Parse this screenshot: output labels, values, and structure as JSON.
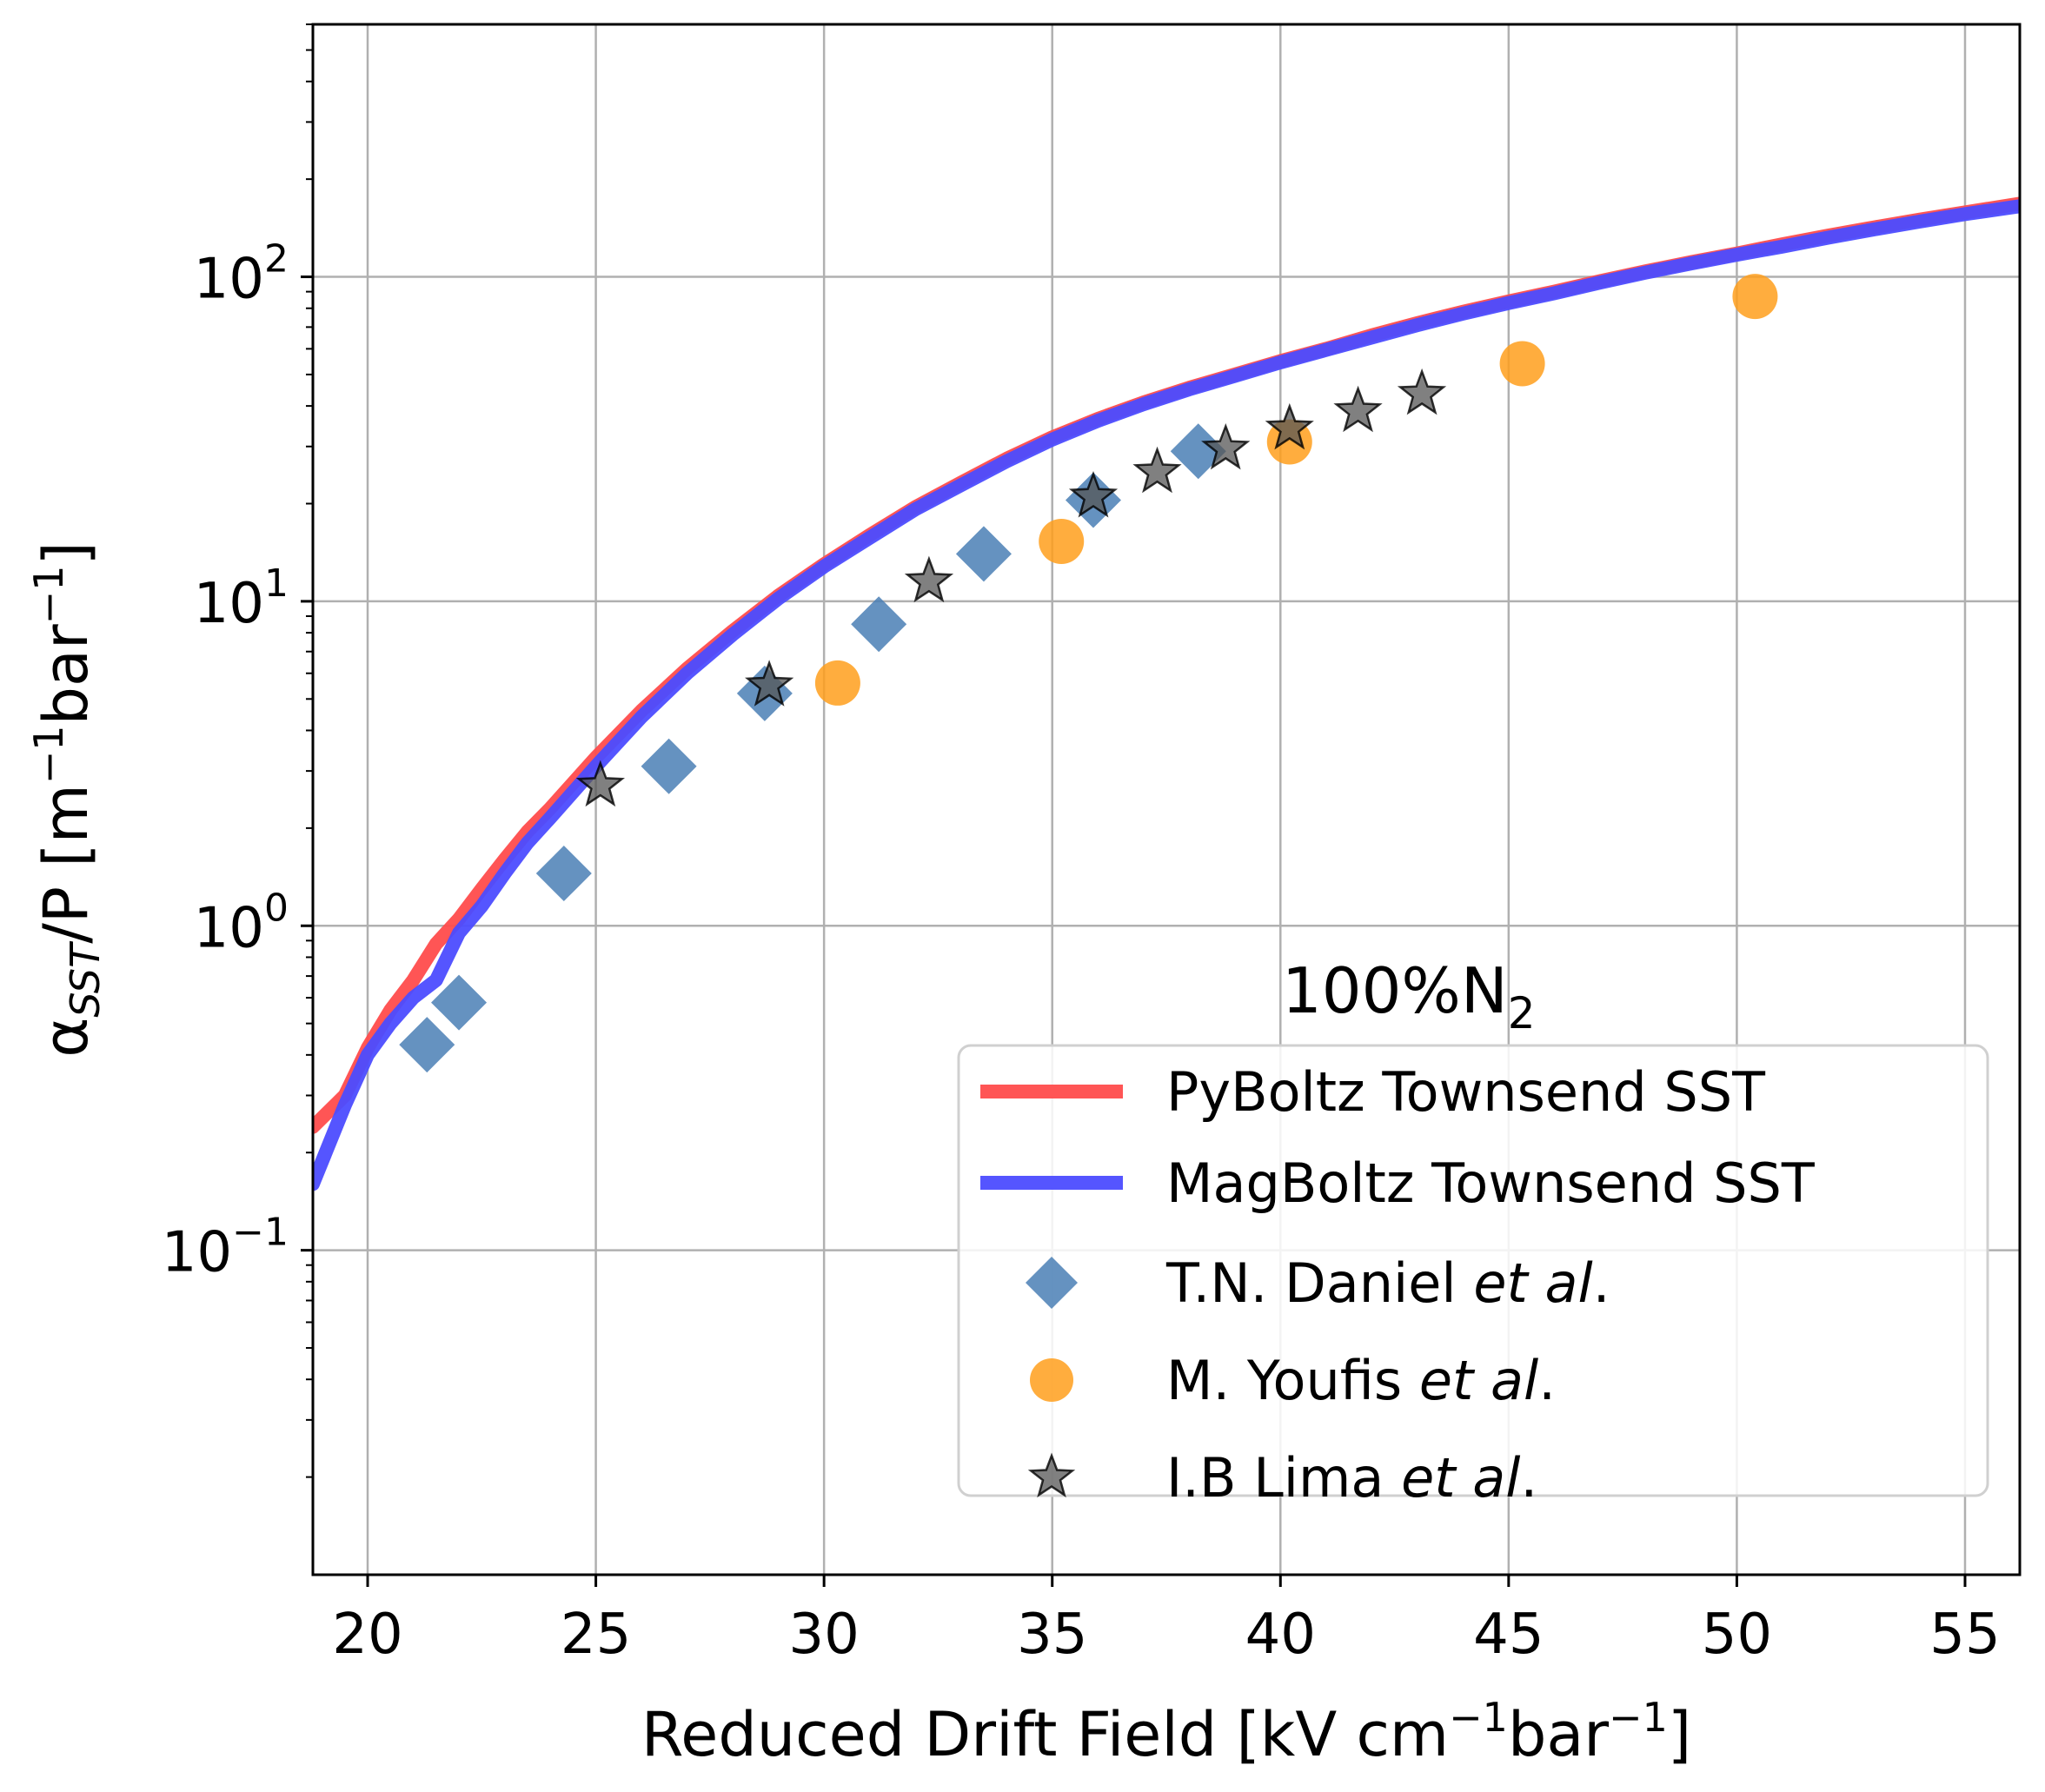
{
  "chart_data": {
    "type": "line",
    "title": "",
    "xlabel": "Reduced Drift Field [kV cm⁻¹bar⁻¹]",
    "ylabel": "α_SST/P [m⁻¹bar⁻¹]",
    "ylabel_parts": {
      "alpha": "α",
      "sub": "SST",
      "rest": "/P [m",
      "exp1": "−1",
      "bar": "bar",
      "exp2": "−1",
      "close": "]"
    },
    "xlabel_parts": {
      "main": "Reduced Drift Field [kV cm",
      "exp1": "−1",
      "bar": "bar",
      "exp2": "−1",
      "close": "]"
    },
    "xlim": [
      18.8,
      56.2
    ],
    "ylim": [
      0.01,
      600
    ],
    "yscale": "log",
    "grid": true,
    "xticks": [
      20,
      25,
      30,
      35,
      40,
      45,
      50,
      55
    ],
    "xtick_labels": [
      "20",
      "25",
      "30",
      "35",
      "40",
      "45",
      "50",
      "55"
    ],
    "yticks": [
      {
        "value": 0.1,
        "base": "10",
        "exp": "−1"
      },
      {
        "value": 1,
        "base": "10",
        "exp": "0"
      },
      {
        "value": 10,
        "base": "10",
        "exp": "1"
      },
      {
        "value": 100,
        "base": "10",
        "exp": "2"
      }
    ],
    "annotation": {
      "text": "100%N",
      "sub": "2"
    },
    "legend_position": "lower right",
    "series": [
      {
        "name": "PyBoltz Townsend SST",
        "kind": "line",
        "color": "#ff4c4c",
        "x": [
          18.8,
          19.5,
          20.0,
          20.5,
          21.0,
          21.5,
          22.0,
          22.5,
          23.0,
          23.5,
          24.0,
          25.0,
          26.0,
          27.0,
          28.0,
          29.0,
          30.0,
          31.0,
          32.0,
          33.0,
          34.0,
          35.0,
          36.0,
          37.0,
          38.0,
          39.0,
          40.0,
          41.0,
          42.0,
          43.0,
          44.0,
          45.0,
          46.0,
          47.0,
          48.0,
          49.0,
          50.0,
          51.0,
          52.0,
          53.0,
          54.0,
          55.0,
          56.2
        ],
        "y": [
          0.24,
          0.3,
          0.42,
          0.55,
          0.68,
          0.88,
          1.05,
          1.3,
          1.6,
          1.95,
          2.3,
          3.3,
          4.6,
          6.2,
          8.1,
          10.4,
          13.0,
          16.0,
          19.5,
          23.2,
          27.5,
          32.0,
          36.5,
          41.0,
          45.5,
          50.0,
          55.0,
          60.0,
          66.0,
          72.0,
          78.0,
          84.0,
          90.0,
          97.0,
          104.0,
          111.0,
          118.0,
          126.0,
          134.0,
          142.0,
          150.0,
          158.0,
          168.0
        ]
      },
      {
        "name": "MagBoltz Townsend SST",
        "kind": "line",
        "color": "#4c4cff",
        "x": [
          18.8,
          19.5,
          20.0,
          20.5,
          21.0,
          21.5,
          22.0,
          22.5,
          23.0,
          23.5,
          24.0,
          25.0,
          26.0,
          27.0,
          28.0,
          29.0,
          30.0,
          31.0,
          32.0,
          33.0,
          34.0,
          35.0,
          36.0,
          37.0,
          38.0,
          39.0,
          40.0,
          41.0,
          42.0,
          43.0,
          44.0,
          45.0,
          46.0,
          47.0,
          48.0,
          49.0,
          50.0,
          51.0,
          52.0,
          53.0,
          54.0,
          55.0,
          56.2
        ],
        "y": [
          0.16,
          0.28,
          0.4,
          0.5,
          0.6,
          0.68,
          0.95,
          1.15,
          1.45,
          1.8,
          2.15,
          3.1,
          4.4,
          6.0,
          7.9,
          10.2,
          12.8,
          15.7,
          19.2,
          22.8,
          27.0,
          31.5,
          36.0,
          40.5,
          45.0,
          49.5,
          54.5,
          59.5,
          65.0,
          71.0,
          77.0,
          83.0,
          89.0,
          96.0,
          103.0,
          110.0,
          117.0,
          124.0,
          132.0,
          140.0,
          148.0,
          156.0,
          165.0
        ]
      },
      {
        "name": "T.N. Daniel et al.",
        "name_plain": "T.N. Daniel ",
        "name_italic": "et al",
        "name_end": ".",
        "kind": "scatter",
        "marker": "diamond",
        "color": "#4a7fb5",
        "x": [
          21.3,
          22.0,
          24.3,
          26.6,
          28.7,
          31.2,
          33.5,
          35.9,
          38.2
        ],
        "y": [
          0.43,
          0.58,
          1.45,
          3.1,
          5.2,
          8.5,
          14.0,
          20.5,
          29.0
        ]
      },
      {
        "name": "M. Youfis et al.",
        "name_plain": "M. Youfis ",
        "name_italic": "et al",
        "name_end": ".",
        "kind": "scatter",
        "marker": "circle",
        "color": "#ff9f1c",
        "x": [
          30.3,
          35.2,
          40.2,
          45.3,
          50.4
        ],
        "y": [
          5.6,
          15.3,
          31.0,
          54.0,
          87.0
        ]
      },
      {
        "name": "I.B Lima et al.",
        "name_plain": "I.B Lima ",
        "name_italic": "et al",
        "name_end": ".",
        "kind": "scatter",
        "marker": "star",
        "color": "#555555",
        "x": [
          25.1,
          28.8,
          32.3,
          35.9,
          37.3,
          38.8,
          40.2,
          41.7,
          43.1
        ],
        "y": [
          2.7,
          5.5,
          11.5,
          21.0,
          25.0,
          29.5,
          34.0,
          38.5,
          43.5
        ]
      }
    ]
  }
}
